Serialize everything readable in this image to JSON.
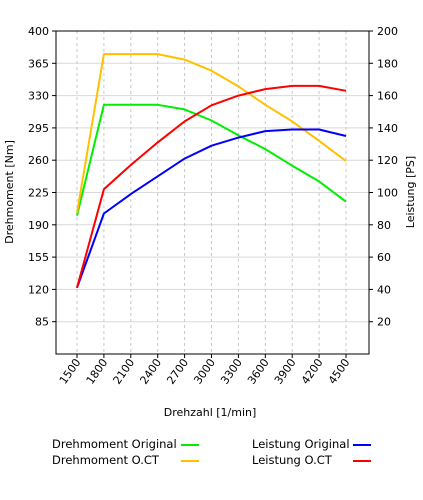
{
  "chart_data": {
    "type": "line",
    "xlabel": "Drehzahl [1/min]",
    "ylabel_left": "Drehmoment  [Nm]",
    "ylabel_right": "Leistung [PS]",
    "x": [
      1500,
      1800,
      2100,
      2400,
      2700,
      3000,
      3300,
      3600,
      3900,
      4200,
      4500
    ],
    "x_ticks": [
      "1500",
      "1800",
      "2100",
      "2400",
      "2700",
      "3000",
      "3300",
      "3600",
      "3900",
      "4200",
      "4500"
    ],
    "ylim_left": [
      50,
      400
    ],
    "yticks_left": [
      85,
      120,
      155,
      190,
      225,
      260,
      295,
      330,
      365,
      400
    ],
    "ylim_right": [
      0,
      200
    ],
    "yticks_right": [
      20,
      40,
      60,
      80,
      100,
      120,
      140,
      160,
      180,
      200
    ],
    "grid": true,
    "series": [
      {
        "name": "Drehmoment Original",
        "axis": "left",
        "color": "#00ee00",
        "values": [
          200,
          320,
          320,
          320,
          315,
          303,
          287,
          272,
          254,
          237,
          215
        ]
      },
      {
        "name": "Drehmoment O.CT",
        "axis": "left",
        "color": "#ffc000",
        "values": [
          203,
          375,
          375,
          375,
          369,
          357,
          340,
          320,
          302,
          281,
          259
        ]
      },
      {
        "name": "Leistung Original",
        "axis": "right",
        "color": "#0000ff",
        "values": [
          41,
          87,
          99,
          110,
          121,
          129,
          134,
          138,
          139,
          139,
          135
        ]
      },
      {
        "name": "Leistung O.CT",
        "axis": "right",
        "color": "#ff0000",
        "values": [
          41,
          102,
          117,
          131,
          144,
          154,
          160,
          164,
          166,
          166,
          163
        ]
      }
    ],
    "legend_placement": "bottom"
  }
}
